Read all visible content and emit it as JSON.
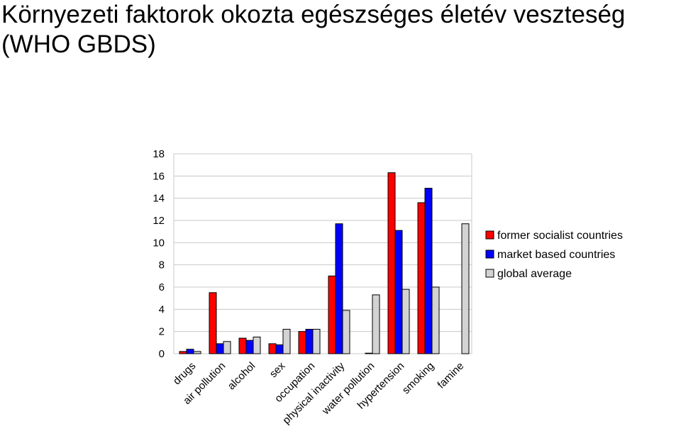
{
  "chart_data": {
    "type": "bar",
    "title": "Környezeti faktorok okozta egészséges életév veszteség (WHO GBDS)",
    "categories": [
      "drugs",
      "air pollution",
      "alcohol",
      "sex",
      "occupation",
      "physical inactivity",
      "water pollution",
      "hypertension",
      "smoking",
      "famine"
    ],
    "series": [
      {
        "name": "former socialist countries",
        "color": "#ff0000",
        "values": [
          0.2,
          5.5,
          1.4,
          0.9,
          2.0,
          7.0,
          null,
          16.3,
          13.6,
          null
        ]
      },
      {
        "name": "market based countries",
        "color": "#0000ff",
        "values": [
          0.4,
          0.9,
          1.2,
          0.8,
          2.2,
          11.7,
          0.05,
          11.1,
          14.9,
          null
        ]
      },
      {
        "name": "global average",
        "color": "#d3d3d3",
        "values": [
          0.2,
          1.1,
          1.5,
          2.2,
          2.2,
          3.9,
          5.3,
          5.8,
          6.0,
          11.7
        ]
      }
    ],
    "yticks": [
      "0",
      "2",
      "4",
      "6",
      "8",
      "10",
      "12",
      "14",
      "16",
      "18"
    ],
    "ylim": [
      0,
      18
    ],
    "xlabel": "",
    "ylabel": "",
    "grid": true,
    "legend": "right"
  }
}
